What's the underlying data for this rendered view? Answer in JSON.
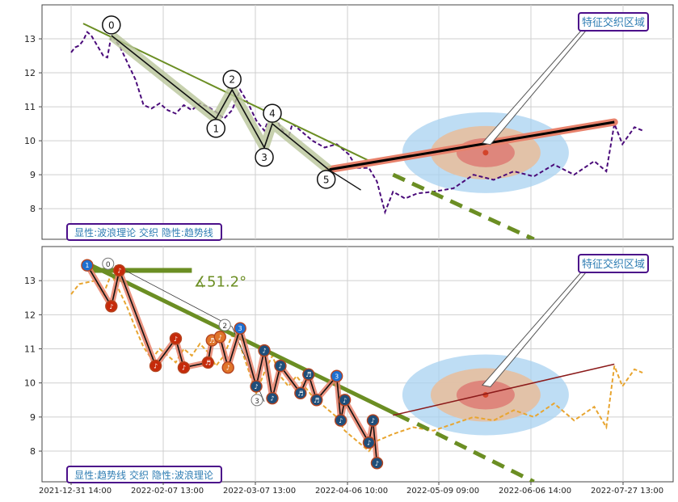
{
  "chart_data": [
    {
      "type": "line",
      "panel": "top",
      "yticks": [
        8,
        9,
        10,
        11,
        12,
        13
      ],
      "ylim": [
        7.1,
        14.0
      ],
      "grid": true,
      "badge": "显性:波浪理论 交织 隐性:趋势线",
      "callout": "特征交织区域",
      "price_series": [
        [
          0,
          12.6
        ],
        [
          1,
          12.75
        ],
        [
          2,
          12.8
        ],
        [
          3,
          12.95
        ],
        [
          4,
          13.2
        ],
        [
          5,
          13.1
        ],
        [
          6,
          12.9
        ],
        [
          7,
          12.7
        ],
        [
          8,
          12.5
        ],
        [
          9,
          12.45
        ],
        [
          10,
          13.1
        ],
        [
          12,
          12.8
        ],
        [
          14,
          12.3
        ],
        [
          16,
          11.8
        ],
        [
          18,
          11.05
        ],
        [
          20,
          10.95
        ],
        [
          22,
          11.1
        ],
        [
          24,
          10.9
        ],
        [
          26,
          10.8
        ],
        [
          28,
          11.05
        ],
        [
          30,
          10.9
        ],
        [
          32,
          11.1
        ],
        [
          34,
          11.0
        ],
        [
          36,
          10.85
        ],
        [
          38,
          10.65
        ],
        [
          40,
          10.9
        ],
        [
          42,
          11.5
        ],
        [
          44,
          11.1
        ],
        [
          46,
          10.6
        ],
        [
          48,
          10.3
        ],
        [
          50,
          10.9
        ],
        [
          52,
          10.4
        ],
        [
          54,
          10.1
        ],
        [
          55,
          10.5
        ],
        [
          57,
          10.3
        ],
        [
          60,
          10.0
        ],
        [
          63,
          9.8
        ],
        [
          66,
          9.9
        ],
        [
          69,
          9.6
        ],
        [
          71,
          9.2
        ],
        [
          74,
          9.2
        ],
        [
          76,
          8.8
        ],
        [
          78,
          7.9
        ],
        [
          80,
          8.5
        ],
        [
          83,
          8.3
        ],
        [
          86,
          8.45
        ],
        [
          90,
          8.5
        ],
        [
          95,
          8.6
        ],
        [
          100,
          9.0
        ],
        [
          105,
          8.85
        ],
        [
          110,
          9.1
        ],
        [
          115,
          8.95
        ],
        [
          120,
          9.3
        ],
        [
          125,
          9.0
        ],
        [
          130,
          9.4
        ],
        [
          133,
          9.1
        ],
        [
          135,
          10.5
        ],
        [
          137,
          9.9
        ],
        [
          140,
          10.4
        ],
        [
          142,
          10.3
        ]
      ],
      "wave_points": [
        {
          "label": "0",
          "x": 10,
          "y": 13.1
        },
        {
          "label": "1",
          "x": 36,
          "y": 10.65
        },
        {
          "label": "2",
          "x": 40,
          "y": 11.5
        },
        {
          "label": "3",
          "x": 48,
          "y": 9.8
        },
        {
          "label": "4",
          "x": 50,
          "y": 10.5
        },
        {
          "label": "5",
          "x": 64,
          "y": 9.15
        }
      ],
      "trendline": {
        "x": [
          3,
          76
        ],
        "y": [
          13.45,
          9.3
        ]
      },
      "trend_projection": {
        "x": [
          80,
          115
        ],
        "y": [
          9.0,
          7.1
        ]
      },
      "forecast_line": {
        "x": [
          64,
          135
        ],
        "y": [
          9.15,
          10.55
        ]
      },
      "target_x": 103,
      "target_y": 9.65
    },
    {
      "type": "line",
      "panel": "bottom",
      "yticks": [
        8,
        9,
        10,
        11,
        12,
        13
      ],
      "ylim": [
        7.1,
        14.0
      ],
      "grid": true,
      "badge": "显性:趋势线 交织 隐性:波浪理论",
      "callout": "特征交织区域",
      "angle_label": "∡51.2°",
      "xtick_labels": [
        "2021-12-31 14:00",
        "2022-02-07 13:00",
        "2022-03-07 13:00",
        "2022-04-06 10:00",
        "2022-05-09 09:00",
        "2022-06-06 14:00",
        "2022-07-27 13:00"
      ],
      "price_series": [
        [
          0,
          12.6
        ],
        [
          2,
          12.9
        ],
        [
          4,
          12.95
        ],
        [
          6,
          13.0
        ],
        [
          8,
          12.6
        ],
        [
          10,
          13.2
        ],
        [
          12,
          12.7
        ],
        [
          14,
          12.2
        ],
        [
          16,
          11.6
        ],
        [
          18,
          11.05
        ],
        [
          20,
          10.7
        ],
        [
          22,
          11.0
        ],
        [
          24,
          10.8
        ],
        [
          26,
          10.6
        ],
        [
          28,
          11.0
        ],
        [
          30,
          10.8
        ],
        [
          32,
          11.15
        ],
        [
          34,
          10.9
        ],
        [
          36,
          10.5
        ],
        [
          38,
          10.8
        ],
        [
          40,
          11.4
        ],
        [
          42,
          11.1
        ],
        [
          44,
          10.4
        ],
        [
          46,
          9.7
        ],
        [
          48,
          10.3
        ],
        [
          50,
          10.8
        ],
        [
          52,
          10.2
        ],
        [
          54,
          9.9
        ],
        [
          56,
          10.2
        ],
        [
          58,
          9.9
        ],
        [
          60,
          9.6
        ],
        [
          62,
          9.4
        ],
        [
          64,
          9.2
        ],
        [
          66,
          9.0
        ],
        [
          68,
          8.6
        ],
        [
          70,
          8.4
        ],
        [
          72,
          8.2
        ],
        [
          74,
          8.0
        ],
        [
          76,
          8.3
        ],
        [
          80,
          8.5
        ],
        [
          85,
          8.7
        ],
        [
          90,
          8.6
        ],
        [
          95,
          8.8
        ],
        [
          100,
          9.0
        ],
        [
          105,
          8.9
        ],
        [
          110,
          9.2
        ],
        [
          115,
          9.0
        ],
        [
          120,
          9.4
        ],
        [
          125,
          8.9
        ],
        [
          130,
          9.3
        ],
        [
          133,
          8.7
        ],
        [
          135,
          10.5
        ],
        [
          137,
          9.9
        ],
        [
          140,
          10.4
        ],
        [
          142,
          10.3
        ]
      ],
      "wave_points": [
        {
          "label": "0",
          "x": 11,
          "y": 13.45
        },
        {
          "label": "2",
          "x": 40,
          "y": 11.65
        },
        {
          "label": "3",
          "x": 48,
          "y": 9.45
        }
      ],
      "trendline": {
        "x": [
          5,
          84
        ],
        "y": [
          13.45,
          8.9
        ]
      },
      "trend_projection": {
        "x": [
          86,
          115
        ],
        "y": [
          8.8,
          7.1
        ]
      },
      "horizontal_line": {
        "x": [
          5,
          30
        ],
        "y": [
          13.3,
          13.3
        ]
      },
      "forecast_line": {
        "x": [
          80,
          135
        ],
        "y": [
          9.05,
          10.55
        ]
      },
      "target_x": 103,
      "target_y": 9.65,
      "markers": [
        {
          "x": 4,
          "y": 13.45,
          "label": "1",
          "color": "#1e6fd0"
        },
        {
          "x": 10,
          "y": 12.25,
          "label": "♪",
          "color": "#c62a0a"
        },
        {
          "x": 12,
          "y": 13.3,
          "label": "♪",
          "color": "#c62a0a"
        },
        {
          "x": 21,
          "y": 10.5,
          "label": "♪",
          "color": "#c62a0a"
        },
        {
          "x": 26,
          "y": 11.3,
          "label": "♪",
          "color": "#c62a0a"
        },
        {
          "x": 28,
          "y": 10.45,
          "label": "♪",
          "color": "#c62a0a"
        },
        {
          "x": 34,
          "y": 10.6,
          "label": "♬",
          "color": "#c62a0a"
        },
        {
          "x": 35,
          "y": 11.25,
          "label": "♬",
          "color": "#e0752a"
        },
        {
          "x": 37,
          "y": 11.35,
          "label": "♪",
          "color": "#e0752a"
        },
        {
          "x": 39,
          "y": 10.45,
          "label": "♪",
          "color": "#e0752a"
        },
        {
          "x": 42,
          "y": 11.6,
          "label": "3",
          "color": "#1e6fd0"
        },
        {
          "x": 46,
          "y": 9.9,
          "label": "♪",
          "color": "#1f4e7a"
        },
        {
          "x": 48,
          "y": 10.95,
          "label": "♪",
          "color": "#1f4e7a"
        },
        {
          "x": 50,
          "y": 9.55,
          "label": "♪",
          "color": "#1f4e7a"
        },
        {
          "x": 52,
          "y": 10.5,
          "label": "♪",
          "color": "#1f4e7a"
        },
        {
          "x": 57,
          "y": 9.7,
          "label": "♬",
          "color": "#1f4e7a"
        },
        {
          "x": 59,
          "y": 10.25,
          "label": "♬",
          "color": "#1f4e7a"
        },
        {
          "x": 61,
          "y": 9.5,
          "label": "♬",
          "color": "#1f4e7a"
        },
        {
          "x": 66,
          "y": 10.2,
          "label": "3",
          "color": "#1e6fd0"
        },
        {
          "x": 67,
          "y": 8.9,
          "label": "♪",
          "color": "#1f4e7a"
        },
        {
          "x": 68,
          "y": 9.5,
          "label": "♪",
          "color": "#1f4e7a"
        },
        {
          "x": 74,
          "y": 8.25,
          "label": "♪",
          "color": "#1f4e7a"
        },
        {
          "x": 75,
          "y": 8.9,
          "label": "♪",
          "color": "#1f4e7a"
        },
        {
          "x": 76,
          "y": 7.65,
          "label": "♪",
          "color": "#1f4e7a"
        }
      ]
    }
  ],
  "colors": {
    "price_top": "#4a0b7a",
    "price_bottom": "#e8a530",
    "trend": "#6b8e23",
    "wave_fill": "#b9c59a",
    "forecast": "#e8826c",
    "zone_outer": "#a8d1f0",
    "zone_mid": "#e6bfa0",
    "zone_inner": "#dd7770",
    "target": "#d2442a",
    "badge_border": "#4b0f8a",
    "badge_text": "#2f7db3"
  }
}
